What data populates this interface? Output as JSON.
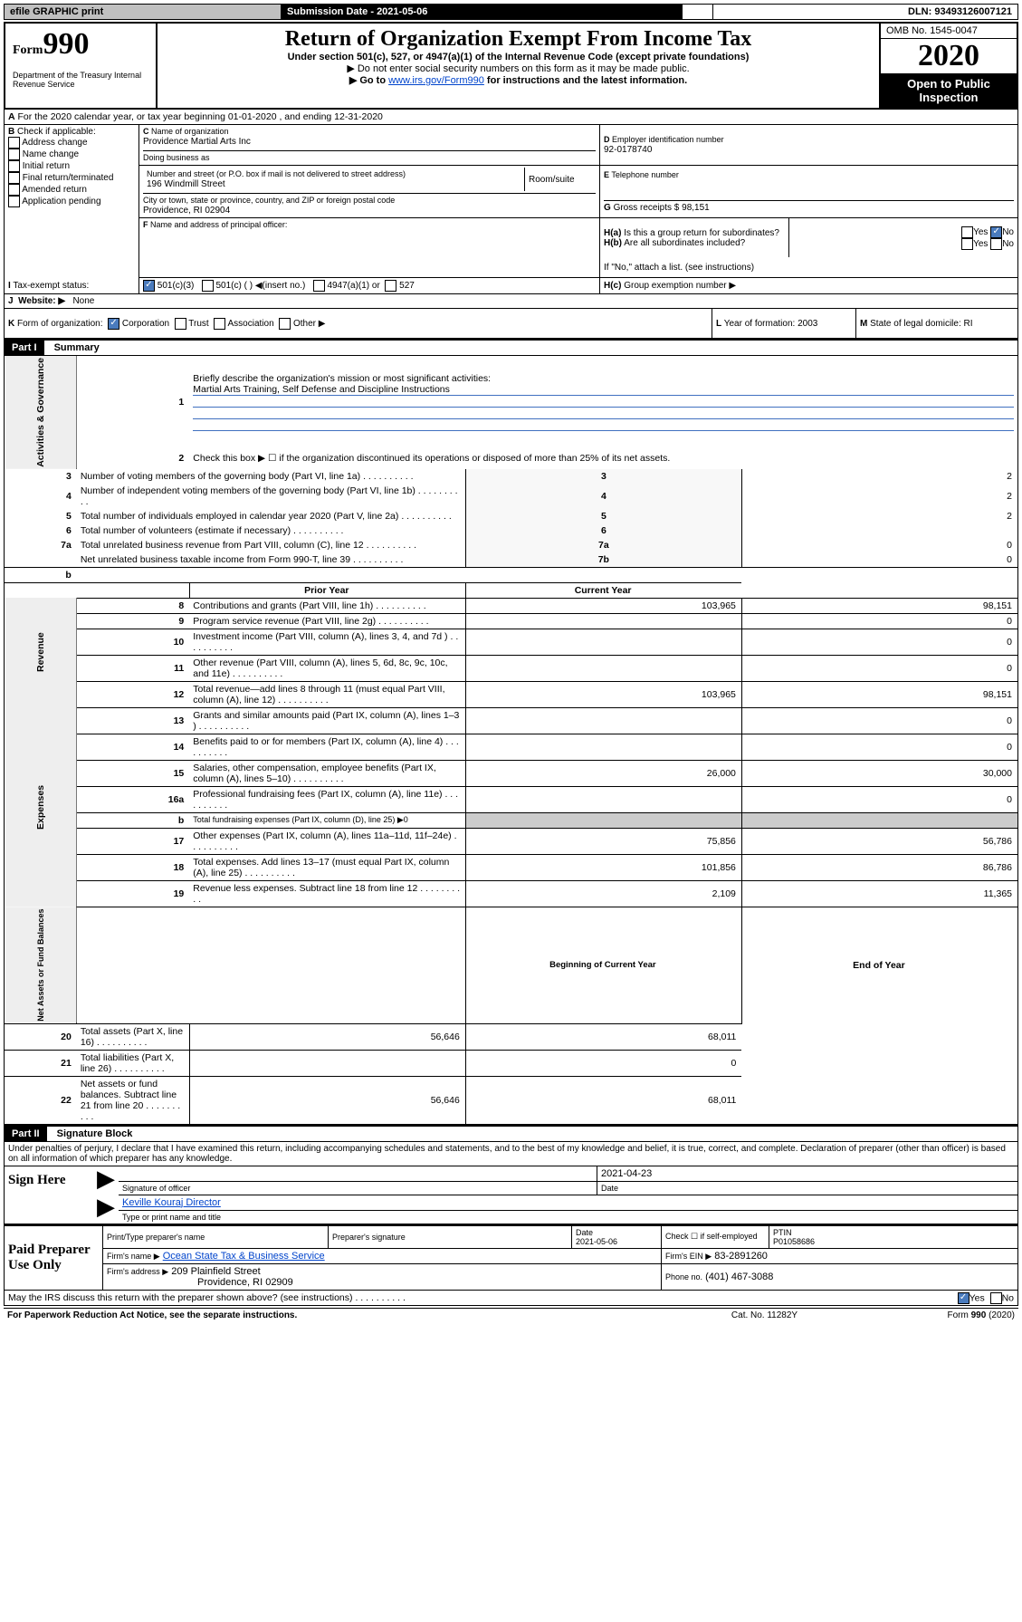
{
  "topbar": {
    "efile": "efile GRAPHIC print",
    "submission_label": "Submission Date - 2021-05-06",
    "dln_label": "DLN: 93493126007121"
  },
  "header": {
    "form_label": "Form",
    "form_no": "990",
    "dept": "Department of the Treasury\nInternal Revenue Service",
    "title": "Return of Organization Exempt From Income Tax",
    "subtitle": "Under section 501(c), 527, or 4947(a)(1) of the Internal Revenue Code (except private foundations)",
    "notice1": "▶ Do not enter social security numbers on this form as it may be made public.",
    "notice2_pre": "▶ Go to ",
    "notice2_link": "www.irs.gov/Form990",
    "notice2_post": " for instructions and the latest information.",
    "omb": "OMB No. 1545-0047",
    "year": "2020",
    "openpub": "Open to Public\nInspection"
  },
  "A": {
    "text": "For the 2020 calendar year, or tax year beginning 01-01-2020   , and ending 12-31-2020"
  },
  "B": {
    "label": "Check if applicable:",
    "opts": [
      "Address change",
      "Name change",
      "Initial return",
      "Final return/terminated",
      "Amended return",
      "Application pending"
    ]
  },
  "C": {
    "name_label": "Name of organization",
    "name": "Providence Martial Arts Inc",
    "dba_label": "Doing business as",
    "addr_label": "Number and street (or P.O. box if mail is not delivered to street address)",
    "room_label": "Room/suite",
    "addr": "196 Windmill Street",
    "city_label": "City or town, state or province, country, and ZIP or foreign postal code",
    "city": "Providence, RI  02904"
  },
  "D": {
    "label": "Employer identification number",
    "val": "92-0178740"
  },
  "E": {
    "label": "Telephone number"
  },
  "G": {
    "label": "Gross receipts $",
    "val": "98,151"
  },
  "F": {
    "label": "Name and address of principal officer:"
  },
  "H": {
    "a_label": "Is this a group return for subordinates?",
    "b_label": "Are all subordinates included?",
    "b_note": "If \"No,\" attach a list. (see instructions)",
    "c_label": "Group exemption number ▶"
  },
  "I": {
    "label": "Tax-exempt status:",
    "o1": "501(c)(3)",
    "o2": "501(c) (  ) ◀(insert no.)",
    "o3": "4947(a)(1) or",
    "o4": "527"
  },
  "J": {
    "label": "Website: ▶",
    "val": "None"
  },
  "K": {
    "label": "Form of organization:",
    "o1": "Corporation",
    "o2": "Trust",
    "o3": "Association",
    "o4": "Other ▶"
  },
  "L": {
    "label": "Year of formation:",
    "val": "2003"
  },
  "M": {
    "label": "State of legal domicile:",
    "val": "RI"
  },
  "part1": {
    "hdr": "Part I",
    "title": "Summary",
    "l1": "Briefly describe the organization's mission or most significant activities:",
    "l1_val": "Martial Arts Training, Self Defense and Discipline Instructions",
    "l2": "Check this box ▶ ☐  if the organization discontinued its operations or disposed of more than 25% of its net assets.",
    "rows_top": [
      {
        "n": "3",
        "t": "Number of voting members of the governing body (Part VI, line 1a)",
        "k": "3",
        "v": "2"
      },
      {
        "n": "4",
        "t": "Number of independent voting members of the governing body (Part VI, line 1b)",
        "k": "4",
        "v": "2"
      },
      {
        "n": "5",
        "t": "Total number of individuals employed in calendar year 2020 (Part V, line 2a)",
        "k": "5",
        "v": "2"
      },
      {
        "n": "6",
        "t": "Total number of volunteers (estimate if necessary)",
        "k": "6",
        "v": ""
      },
      {
        "n": "7a",
        "t": "Total unrelated business revenue from Part VIII, column (C), line 12",
        "k": "7a",
        "v": "0"
      },
      {
        "n": "",
        "t": "Net unrelated business taxable income from Form 990-T, line 39",
        "k": "7b",
        "v": "0"
      }
    ],
    "col_prior": "Prior Year",
    "col_curr": "Current Year",
    "rev": [
      {
        "n": "8",
        "t": "Contributions and grants (Part VIII, line 1h)",
        "p": "103,965",
        "c": "98,151"
      },
      {
        "n": "9",
        "t": "Program service revenue (Part VIII, line 2g)",
        "p": "",
        "c": "0"
      },
      {
        "n": "10",
        "t": "Investment income (Part VIII, column (A), lines 3, 4, and 7d )",
        "p": "",
        "c": "0"
      },
      {
        "n": "11",
        "t": "Other revenue (Part VIII, column (A), lines 5, 6d, 8c, 9c, 10c, and 11e)",
        "p": "",
        "c": "0"
      },
      {
        "n": "12",
        "t": "Total revenue—add lines 8 through 11 (must equal Part VIII, column (A), line 12)",
        "p": "103,965",
        "c": "98,151"
      }
    ],
    "exp": [
      {
        "n": "13",
        "t": "Grants and similar amounts paid (Part IX, column (A), lines 1–3 )",
        "p": "",
        "c": "0"
      },
      {
        "n": "14",
        "t": "Benefits paid to or for members (Part IX, column (A), line 4)",
        "p": "",
        "c": "0"
      },
      {
        "n": "15",
        "t": "Salaries, other compensation, employee benefits (Part IX, column (A), lines 5–10)",
        "p": "26,000",
        "c": "30,000"
      },
      {
        "n": "16a",
        "t": "Professional fundraising fees (Part IX, column (A), line 11e)",
        "p": "",
        "c": "0"
      },
      {
        "n": "b",
        "t": "Total fundraising expenses (Part IX, column (D), line 25) ▶0",
        "p": "—",
        "c": "—"
      },
      {
        "n": "17",
        "t": "Other expenses (Part IX, column (A), lines 11a–11d, 11f–24e)",
        "p": "75,856",
        "c": "56,786"
      },
      {
        "n": "18",
        "t": "Total expenses. Add lines 13–17 (must equal Part IX, column (A), line 25)",
        "p": "101,856",
        "c": "86,786"
      },
      {
        "n": "19",
        "t": "Revenue less expenses. Subtract line 18 from line 12",
        "p": "2,109",
        "c": "11,365"
      }
    ],
    "col_begin": "Beginning of Current Year",
    "col_end": "End of Year",
    "net": [
      {
        "n": "20",
        "t": "Total assets (Part X, line 16)",
        "p": "56,646",
        "c": "68,011"
      },
      {
        "n": "21",
        "t": "Total liabilities (Part X, line 26)",
        "p": "",
        "c": "0"
      },
      {
        "n": "22",
        "t": "Net assets or fund balances. Subtract line 21 from line 20",
        "p": "56,646",
        "c": "68,011"
      }
    ],
    "vert_ag": "Activities & Governance",
    "vert_rev": "Revenue",
    "vert_exp": "Expenses",
    "vert_net": "Net Assets or\nFund Balances"
  },
  "part2": {
    "hdr": "Part II",
    "title": "Signature Block",
    "perjury": "Under penalties of perjury, I declare that I have examined this return, including accompanying schedules and statements, and to the best of my knowledge and belief, it is true, correct, and complete. Declaration of preparer (other than officer) is based on all information of which preparer has any knowledge.",
    "sign_here": "Sign Here",
    "sig_officer": "Signature of officer",
    "sig_date": "2021-04-23",
    "date_lbl": "Date",
    "officer_name": "Keville Kouraj  Director",
    "name_title": "Type or print name and title",
    "paid": "Paid Preparer Use Only",
    "prep_name_lbl": "Print/Type preparer's name",
    "prep_sig_lbl": "Preparer's signature",
    "prep_date_lbl": "Date",
    "prep_date": "2021-05-06",
    "check_self": "Check ☐ if self-employed",
    "ptin_lbl": "PTIN",
    "ptin": "P01058686",
    "firm_name_lbl": "Firm's name   ▶",
    "firm_name": "Ocean State Tax & Business Service",
    "firm_ein_lbl": "Firm's EIN ▶",
    "firm_ein": "83-2891260",
    "firm_addr_lbl": "Firm's address ▶",
    "firm_addr1": "209 Plainfield Street",
    "firm_addr2": "Providence, RI  02909",
    "phone_lbl": "Phone no.",
    "phone": "(401) 467-3088",
    "discuss": "May the IRS discuss this return with the preparer shown above? (see instructions)"
  },
  "footer": {
    "pra": "For Paperwork Reduction Act Notice, see the separate instructions.",
    "cat": "Cat. No. 11282Y",
    "form": "Form 990 (2020)"
  }
}
